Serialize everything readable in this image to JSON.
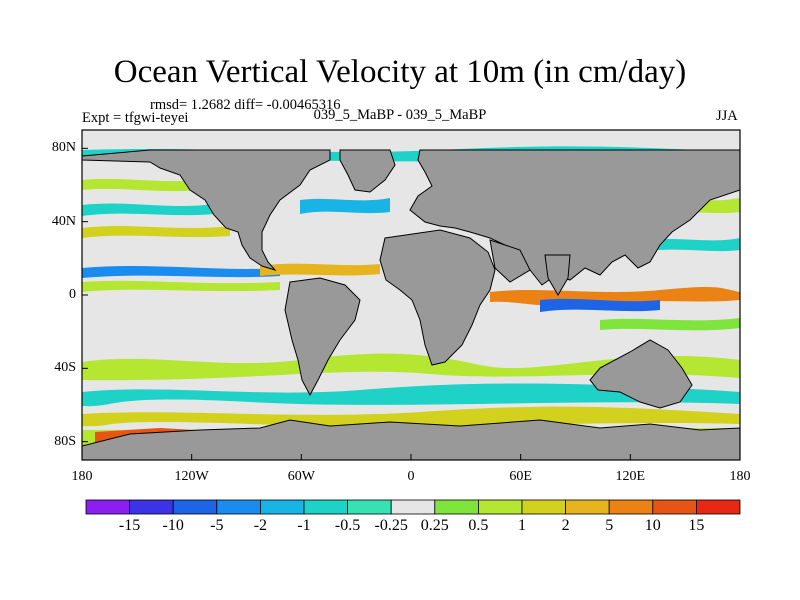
{
  "title": "Ocean Vertical Velocity at 10m (in cm/day)",
  "stats": "rmsd= 1.2682 diff= -0.00465316",
  "experiment": "Expt = tfgwi-teyei",
  "case": "039_5_MaBP - 039_5_MaBP",
  "season": "JJA",
  "lat_labels": [
    "80N",
    "40N",
    "0",
    "40S",
    "80S"
  ],
  "lon_labels": [
    "180",
    "120W",
    "60W",
    "0",
    "60E",
    "120E",
    "180"
  ],
  "colorbar": {
    "labels": [
      "-15",
      "-10",
      "-5",
      "-2",
      "-1",
      "-0.5",
      "-0.25",
      "0.25",
      "0.5",
      "1",
      "2",
      "5",
      "10",
      "15"
    ],
    "colors": [
      "#8a1ff0",
      "#3c32e6",
      "#1e64e6",
      "#1a8cf0",
      "#19b4e6",
      "#1ed2c8",
      "#38e0b4",
      "#e6e6e6",
      "#7fe43c",
      "#b4e632",
      "#d2d21e",
      "#e6b41e",
      "#eb8214",
      "#e65514",
      "#e62814"
    ]
  },
  "colors": {
    "land": "#999999",
    "background": "#ffffff"
  }
}
